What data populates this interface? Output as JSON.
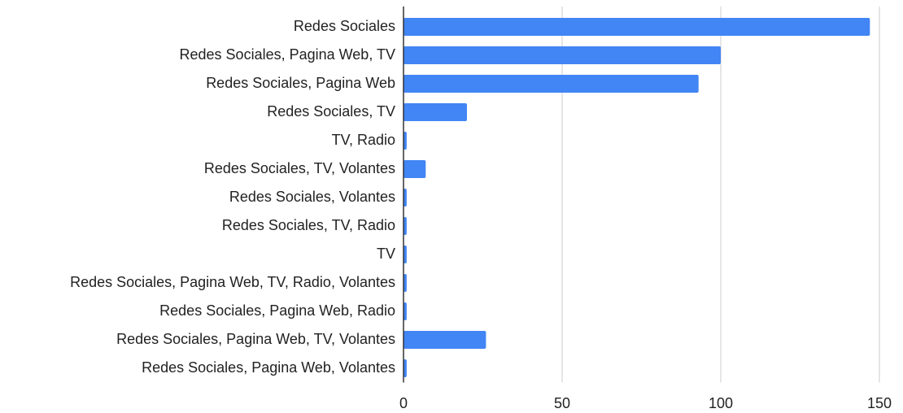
{
  "chart_data": {
    "type": "bar",
    "orientation": "horizontal",
    "categories": [
      "Redes Sociales",
      "Redes Sociales, Pagina Web, TV",
      "Redes Sociales, Pagina Web",
      "Redes Sociales, TV",
      "TV, Radio",
      "Redes Sociales, TV, Volantes",
      "Redes Sociales, Volantes",
      "Redes Sociales, TV, Radio",
      "TV",
      "Redes Sociales, Pagina Web, TV, Radio, Volantes",
      "Redes Sociales, Pagina Web, Radio",
      "Redes Sociales, Pagina Web, TV, Volantes",
      "Redes Sociales, Pagina Web, Volantes"
    ],
    "values": [
      147,
      100,
      93,
      20,
      1,
      7,
      1,
      1,
      1,
      1,
      1,
      26,
      1
    ],
    "color": "#4285f4",
    "xlim": [
      0,
      150
    ],
    "xticks": [
      0,
      50,
      100,
      150
    ],
    "grid": true
  }
}
